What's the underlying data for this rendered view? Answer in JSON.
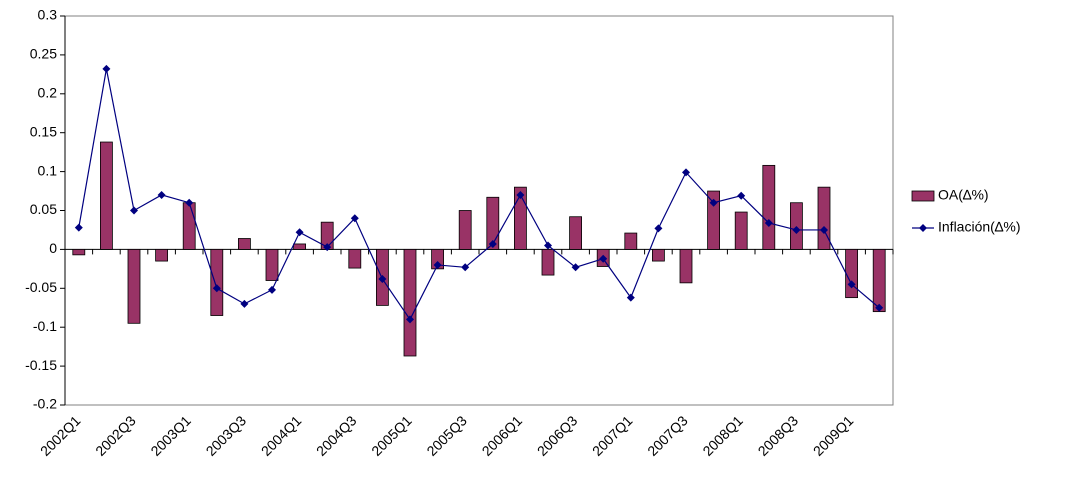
{
  "chart_data": {
    "type": "combo",
    "categories": [
      "2002Q1",
      null,
      "2002Q3",
      null,
      "2003Q1",
      null,
      "2003Q3",
      null,
      "2004Q1",
      null,
      "2004Q3",
      null,
      "2005Q1",
      null,
      "2005Q3",
      null,
      "2006Q1",
      null,
      "2006Q3",
      null,
      "2007Q1",
      null,
      "2007Q3",
      null,
      "2008Q1",
      null,
      "2008Q3",
      null,
      "2009Q1",
      null
    ],
    "series": [
      {
        "name": "OA(∆%)",
        "type": "bar",
        "color": "#993366",
        "values": [
          -0.007,
          0.138,
          -0.095,
          -0.015,
          0.06,
          -0.085,
          0.014,
          -0.04,
          0.007,
          0.035,
          -0.024,
          -0.072,
          -0.137,
          -0.025,
          0.05,
          0.067,
          0.08,
          -0.033,
          0.042,
          -0.022,
          0.021,
          -0.015,
          -0.043,
          0.075,
          0.048,
          0.108,
          0.06,
          0.08,
          -0.062,
          -0.08
        ]
      },
      {
        "name": "Inflación(∆%)",
        "type": "line",
        "color": "#000080",
        "values": [
          0.028,
          0.232,
          0.05,
          0.07,
          0.06,
          -0.05,
          -0.07,
          -0.052,
          0.022,
          0.003,
          0.04,
          -0.038,
          -0.09,
          -0.02,
          -0.023,
          0.007,
          0.07,
          0.005,
          -0.023,
          -0.012,
          -0.062,
          0.027,
          0.099,
          0.06,
          0.069,
          0.034,
          0.025,
          0.025,
          -0.045,
          -0.075
        ]
      }
    ],
    "ylim": [
      -0.2,
      0.3
    ],
    "yticks": [
      -0.2,
      -0.15,
      -0.1,
      -0.05,
      0,
      0.05,
      0.1,
      0.15,
      0.2,
      0.25,
      0.3
    ],
    "legend": "right"
  }
}
